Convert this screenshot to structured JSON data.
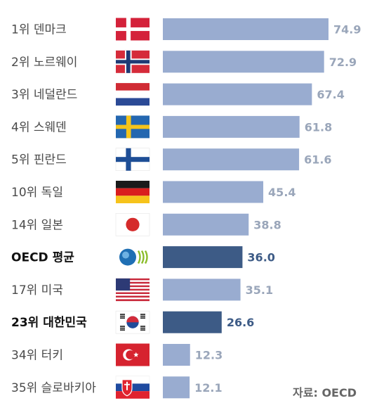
{
  "chart_data": {
    "type": "bar",
    "orientation": "horizontal",
    "categories": [
      "1위 덴마크",
      "2위 노르웨이",
      "3위 네덜란드",
      "4위 스웨덴",
      "5위 핀란드",
      "10위 독일",
      "14위 일본",
      "OECD 평균",
      "17위 미국",
      "23위 대한민국",
      "34위 터키",
      "35위 슬로바키아"
    ],
    "values": [
      74.9,
      72.9,
      67.4,
      61.8,
      61.6,
      45.4,
      38.8,
      36.0,
      35.1,
      26.6,
      12.3,
      12.1
    ],
    "value_labels": [
      "74.9",
      "72.9",
      "67.4",
      "61.8",
      "61.6",
      "45.4",
      "38.8",
      "36.0",
      "35.1",
      "26.6",
      "12.3",
      "12.1"
    ],
    "highlighted": [
      false,
      false,
      false,
      false,
      false,
      false,
      false,
      true,
      false,
      true,
      false,
      false
    ],
    "flags": [
      "denmark-flag",
      "norway-flag",
      "netherlands-flag",
      "sweden-flag",
      "finland-flag",
      "germany-flag",
      "japan-flag",
      "oecd-logo",
      "usa-flag",
      "korea-flag",
      "turkey-flag",
      "slovakia-flag"
    ],
    "xlim": [
      0,
      80
    ],
    "grid": false,
    "title": "",
    "xlabel": "",
    "ylabel": ""
  },
  "colors": {
    "bar": "#99acd0",
    "bar_highlight": "#3d5b86",
    "value_label": "#9aa6ba",
    "value_label_highlight": "#3d5b86"
  },
  "source": "자료: OECD"
}
